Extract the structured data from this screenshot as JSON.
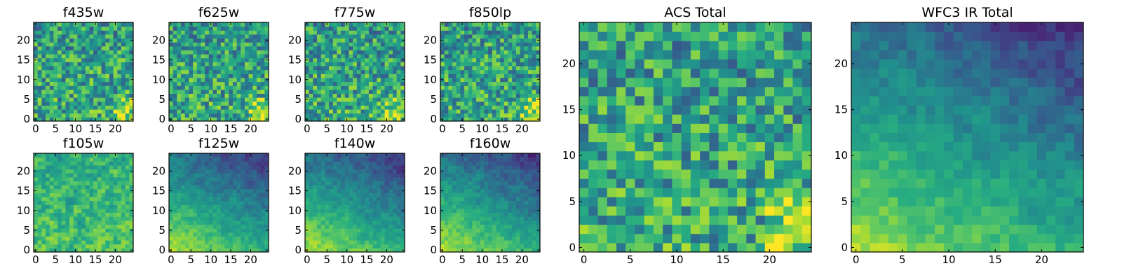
{
  "chart_data": [
    {
      "type": "heatmap",
      "title": "f435w",
      "size": 25,
      "colormap": "viridis",
      "xticks": [
        0,
        5,
        10,
        15,
        20
      ],
      "yticks": [
        0,
        5,
        10,
        15,
        20
      ],
      "xlim": [
        0,
        24
      ],
      "ylim": [
        0,
        24
      ],
      "grid": false,
      "pattern": "uniform"
    },
    {
      "type": "heatmap",
      "title": "f625w",
      "size": 25,
      "colormap": "viridis",
      "xticks": [
        0,
        5,
        10,
        15,
        20
      ],
      "yticks": [
        0,
        5,
        10,
        15,
        20
      ],
      "xlim": [
        0,
        24
      ],
      "ylim": [
        0,
        24
      ],
      "grid": false,
      "pattern": "uniform"
    },
    {
      "type": "heatmap",
      "title": "f775w",
      "size": 25,
      "colormap": "viridis",
      "xticks": [
        0,
        5,
        10,
        15,
        20
      ],
      "yticks": [
        0,
        5,
        10,
        15,
        20
      ],
      "xlim": [
        0,
        24
      ],
      "ylim": [
        0,
        24
      ],
      "grid": false,
      "pattern": "uniform"
    },
    {
      "type": "heatmap",
      "title": "f850lp",
      "size": 25,
      "colormap": "viridis",
      "xticks": [
        0,
        5,
        10,
        15,
        20
      ],
      "yticks": [
        0,
        5,
        10,
        15,
        20
      ],
      "xlim": [
        0,
        24
      ],
      "ylim": [
        0,
        24
      ],
      "grid": false,
      "pattern": "uniform"
    },
    {
      "type": "heatmap",
      "title": "f105w",
      "size": 25,
      "colormap": "viridis",
      "xticks": [
        0,
        5,
        10,
        15,
        20
      ],
      "yticks": [
        0,
        5,
        10,
        15,
        20
      ],
      "xlim": [
        0,
        24
      ],
      "ylim": [
        0,
        24
      ],
      "grid": false,
      "pattern": "smooth"
    },
    {
      "type": "heatmap",
      "title": "f125w",
      "size": 25,
      "colormap": "viridis",
      "xticks": [
        0,
        5,
        10,
        15,
        20
      ],
      "yticks": [
        0,
        5,
        10,
        15,
        20
      ],
      "xlim": [
        0,
        24
      ],
      "ylim": [
        0,
        24
      ],
      "grid": false,
      "pattern": "gradient"
    },
    {
      "type": "heatmap",
      "title": "f140w",
      "size": 25,
      "colormap": "viridis",
      "xticks": [
        0,
        5,
        10,
        15,
        20
      ],
      "yticks": [
        0,
        5,
        10,
        15,
        20
      ],
      "xlim": [
        0,
        24
      ],
      "ylim": [
        0,
        24
      ],
      "grid": false,
      "pattern": "gradient"
    },
    {
      "type": "heatmap",
      "title": "f160w",
      "size": 25,
      "colormap": "viridis",
      "xticks": [
        0,
        5,
        10,
        15,
        20
      ],
      "yticks": [
        0,
        5,
        10,
        15,
        20
      ],
      "xlim": [
        0,
        24
      ],
      "ylim": [
        0,
        24
      ],
      "grid": false,
      "pattern": "gradient"
    },
    {
      "type": "heatmap",
      "title": "ACS Total",
      "size": 25,
      "colormap": "viridis",
      "xticks": [
        0,
        5,
        10,
        15,
        20
      ],
      "yticks": [
        0,
        5,
        10,
        15,
        20
      ],
      "xlim": [
        0,
        24
      ],
      "ylim": [
        0,
        24
      ],
      "grid": false,
      "pattern": "uniform"
    },
    {
      "type": "heatmap",
      "title": "WFC3 IR Total",
      "size": 25,
      "colormap": "viridis",
      "xticks": [
        0,
        5,
        10,
        15,
        20
      ],
      "yticks": [
        0,
        5,
        10,
        15,
        20
      ],
      "xlim": [
        0,
        24
      ],
      "ylim": [
        0,
        24
      ],
      "grid": false,
      "pattern": "gradient"
    }
  ]
}
